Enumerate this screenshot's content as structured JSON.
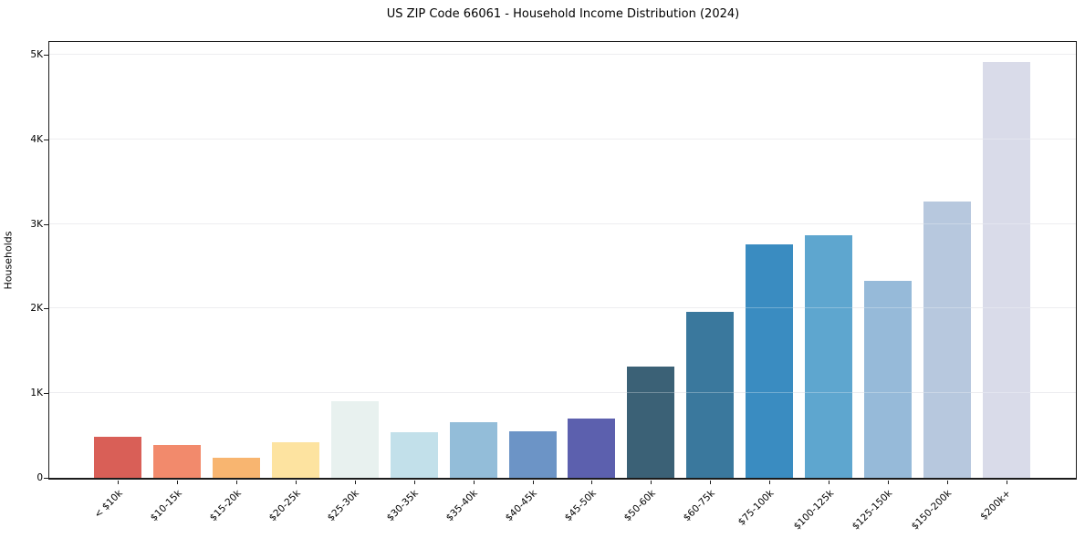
{
  "chart_data": {
    "type": "bar",
    "title": "US ZIP Code 66061 - Household Income Distribution (2024)",
    "xlabel": "",
    "ylabel": "Households",
    "categories": [
      "< $10k",
      "$10-15k",
      "$15-20k",
      "$20-25k",
      "$25-30k",
      "$30-35k",
      "$35-40k",
      "$40-45k",
      "$45-50k",
      "$50-60k",
      "$60-75k",
      "$75-100k",
      "$100-125k",
      "$125-150k",
      "$150-200k",
      "$200k+"
    ],
    "values": [
      480,
      385,
      235,
      415,
      910,
      535,
      655,
      555,
      705,
      1315,
      1960,
      2755,
      2865,
      2325,
      3260,
      4915
    ],
    "bar_colors": [
      "#d95f57",
      "#f28a6c",
      "#f8b570",
      "#fde3a0",
      "#e8f1ef",
      "#c2e0ea",
      "#93bdd9",
      "#6c94c6",
      "#5c60ae",
      "#3b6176",
      "#3a789d",
      "#3a8cc1",
      "#5ea6cf",
      "#96bad9",
      "#b7c8de",
      "#d9dbe9"
    ],
    "ylim": [
      0,
      5150
    ],
    "ytick_values": [
      0,
      1000,
      2000,
      3000,
      4000,
      5000
    ],
    "ytick_labels": [
      "0",
      "1K",
      "2K",
      "3K",
      "4K",
      "5K"
    ],
    "grid": "horizontal",
    "legend": "none"
  },
  "colors": {
    "background": "#ffffff",
    "spine": "#1c1c1c",
    "grid": "#e7e7ea",
    "text": "#000000"
  }
}
